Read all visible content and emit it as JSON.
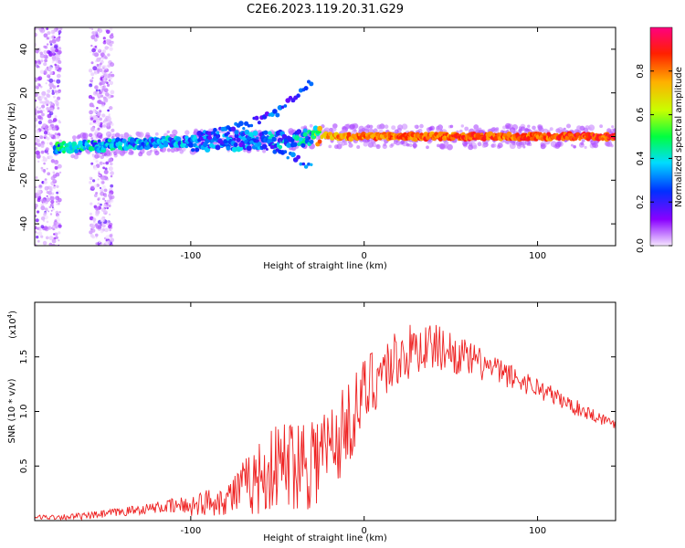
{
  "title": "C2E6.2023.119.20.31.G29",
  "chart_data": [
    {
      "type": "heatmap",
      "name": "spectrogram",
      "xlabel": "Height of straight line (km)",
      "ylabel": "Frequency (Hz)",
      "xlim": [
        -190,
        145
      ],
      "ylim": [
        -50,
        50
      ],
      "x_ticks": [
        -100,
        0,
        100
      ],
      "x_tick_labels": [
        "-100",
        "0",
        "100"
      ],
      "y_ticks": [
        -40,
        -20,
        0,
        20,
        40
      ],
      "y_tick_labels": [
        "-40",
        "-20",
        "0",
        "20",
        "40"
      ],
      "colorbar": {
        "label": "Normalized spectral amplitude",
        "range": [
          0,
          1
        ],
        "ticks": [
          0,
          0.2,
          0.4,
          0.6,
          0.8
        ],
        "tick_labels": [
          "0.0",
          "0.2",
          "0.4",
          "0.6",
          "0.8"
        ],
        "colors": [
          "#f5e6ff",
          "#8a00ff",
          "#0030ff",
          "#00dcff",
          "#00ff40",
          "#c8ff00",
          "#ffb000",
          "#ff2000",
          "#ff0080"
        ]
      },
      "ridge": [
        {
          "x": -178,
          "f": -5,
          "amp": 0.45
        },
        {
          "x": -150,
          "f": -4,
          "amp": 0.4
        },
        {
          "x": -120,
          "f": -3,
          "amp": 0.38
        },
        {
          "x": -90,
          "f": -2,
          "amp": 0.32
        },
        {
          "x": -60,
          "f": -2,
          "amp": 0.35
        },
        {
          "x": -30,
          "f": 0,
          "amp": 0.4
        },
        {
          "x": -25,
          "f": 0,
          "amp": 0.8
        },
        {
          "x": 0,
          "f": 0,
          "amp": 0.85
        },
        {
          "x": 145,
          "f": 0,
          "amp": 0.9
        }
      ],
      "branch": [
        {
          "x": -95,
          "f": 1
        },
        {
          "x": -70,
          "f": 5
        },
        {
          "x": -50,
          "f": 11
        },
        {
          "x": -40,
          "f": 18
        },
        {
          "x": -30,
          "f": 25
        }
      ],
      "noise_bands": [
        {
          "x_start": -190,
          "x_end": -175
        },
        {
          "x_start": -158,
          "x_end": -145
        }
      ]
    },
    {
      "type": "line",
      "name": "snr",
      "xlabel": "Height of straight line (km)",
      "ylabel": "SNR (10 * v/v)",
      "y_exponent": "(x10",
      "y_exponent_power": "4",
      "y_exponent_close": ")",
      "xlim": [
        -190,
        145
      ],
      "ylim": [
        0,
        2.0
      ],
      "x_ticks": [
        -100,
        0,
        100
      ],
      "x_tick_labels": [
        "-100",
        "0",
        "100"
      ],
      "y_ticks": [
        0.5,
        1.0,
        1.5
      ],
      "y_tick_labels": [
        "0.5",
        "1.0",
        "1.5"
      ],
      "color": "#ee2222",
      "envelope": [
        {
          "x": -190,
          "y": 0.03
        },
        {
          "x": -160,
          "y": 0.04
        },
        {
          "x": -140,
          "y": 0.08
        },
        {
          "x": -120,
          "y": 0.12
        },
        {
          "x": -100,
          "y": 0.14
        },
        {
          "x": -80,
          "y": 0.2
        },
        {
          "x": -65,
          "y": 0.35
        },
        {
          "x": -50,
          "y": 0.5
        },
        {
          "x": -40,
          "y": 0.55
        },
        {
          "x": -25,
          "y": 0.6
        },
        {
          "x": -15,
          "y": 0.75
        },
        {
          "x": -5,
          "y": 1.0
        },
        {
          "x": 5,
          "y": 1.3
        },
        {
          "x": 20,
          "y": 1.5
        },
        {
          "x": 35,
          "y": 1.6
        },
        {
          "x": 45,
          "y": 1.58
        },
        {
          "x": 60,
          "y": 1.48
        },
        {
          "x": 80,
          "y": 1.35
        },
        {
          "x": 100,
          "y": 1.22
        },
        {
          "x": 120,
          "y": 1.05
        },
        {
          "x": 135,
          "y": 0.95
        },
        {
          "x": 145,
          "y": 0.88
        }
      ],
      "spread": [
        {
          "x": -190,
          "s": 0.02
        },
        {
          "x": -120,
          "s": 0.05
        },
        {
          "x": -80,
          "s": 0.15
        },
        {
          "x": -60,
          "s": 0.35
        },
        {
          "x": -30,
          "s": 0.5
        },
        {
          "x": -10,
          "s": 0.4
        },
        {
          "x": 10,
          "s": 0.3
        },
        {
          "x": 40,
          "s": 0.22
        },
        {
          "x": 80,
          "s": 0.12
        },
        {
          "x": 145,
          "s": 0.05
        }
      ]
    }
  ]
}
